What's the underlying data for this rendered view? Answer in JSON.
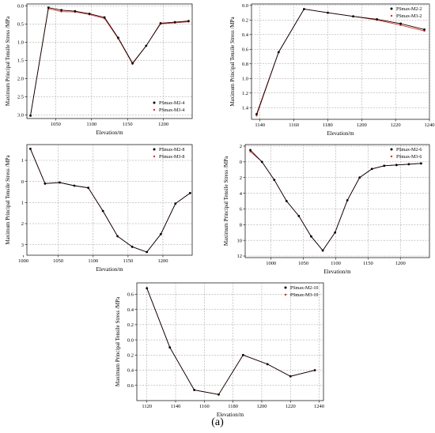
{
  "caption": "(a)",
  "colors": {
    "m2": "#000000",
    "m3": "#e8281e",
    "grid": "#9a9a9a"
  },
  "chart_data": [
    {
      "type": "line",
      "xlabel": "Elevation/m",
      "ylabel": "Maximum Principal Tensile Stress /MPa",
      "xlim": [
        1010,
        1240
      ],
      "ylim": [
        -3.1,
        0.05
      ],
      "xticks": [
        1050,
        1100,
        1150,
        1200
      ],
      "yticks": [
        0,
        -0.5,
        -1,
        -1.5,
        -2,
        -2.5,
        -3
      ],
      "ytick_labels": [
        "0.0",
        "0.5",
        "1.0",
        "1.5",
        "2.0",
        "2.5",
        "3.0"
      ],
      "legend_position": "bottom-right",
      "series": [
        {
          "name": "PSmax-M2-4",
          "x": [
            1015,
            1040,
            1058,
            1077,
            1097,
            1118,
            1137,
            1157,
            1176,
            1196,
            1216,
            1235
          ],
          "y": [
            -3.02,
            -0.05,
            -0.12,
            -0.15,
            -0.22,
            -0.32,
            -0.88,
            -1.58,
            -1.1,
            -0.48,
            -0.45,
            -0.42
          ]
        },
        {
          "name": "PSmax-M3-4",
          "x": [
            1015,
            1040,
            1058,
            1077,
            1097,
            1118,
            1137,
            1157,
            1176,
            1196,
            1216,
            1235
          ],
          "y": [
            -3.02,
            -0.08,
            -0.16,
            -0.17,
            -0.24,
            -0.35,
            -0.9,
            -1.6,
            -1.1,
            -0.5,
            -0.47,
            -0.44
          ]
        }
      ]
    },
    {
      "type": "line",
      "xlabel": "Elevation/m",
      "ylabel": "Maximum Principal Tensile Stress /MPa",
      "xlim": [
        1135,
        1240
      ],
      "ylim": [
        -1.56,
        0.02
      ],
      "xticks": [
        1140,
        1160,
        1180,
        1200,
        1220,
        1240
      ],
      "yticks": [
        0,
        -0.2,
        -0.4,
        -0.6,
        -0.8,
        -1.0,
        -1.2,
        -1.4
      ],
      "ytick_labels": [
        "0.0",
        "0.2",
        "0.4",
        "0.6",
        "0.8",
        "1.0",
        "1.2",
        "1.4"
      ],
      "legend_position": "top-right",
      "series": [
        {
          "name": "PSmax-M2-2",
          "x": [
            1138,
            1151,
            1166,
            1180,
            1195,
            1209,
            1223,
            1237
          ],
          "y": [
            -1.49,
            -0.64,
            -0.05,
            -0.1,
            -0.15,
            -0.19,
            -0.25,
            -0.33
          ]
        },
        {
          "name": "PSmax-M3-2",
          "x": [
            1138,
            1151,
            1166,
            1180,
            1195,
            1209,
            1223,
            1237
          ],
          "y": [
            -1.51,
            -0.64,
            -0.05,
            -0.1,
            -0.15,
            -0.2,
            -0.27,
            -0.35
          ]
        }
      ]
    },
    {
      "type": "line",
      "xlabel": "Elevation/m",
      "ylabel": "Maximum Principal Tensile Stress /MPa",
      "xlim": [
        1005,
        1242
      ],
      "ylim": [
        -3.5,
        1.75
      ],
      "xticks": [
        1000,
        1050,
        1100,
        1150,
        1200
      ],
      "yticks": [
        1,
        0,
        -1,
        -2,
        -3
      ],
      "ytick_labels": [
        "1",
        "0",
        "1",
        "2",
        "3"
      ],
      "legend_position": "top-right",
      "series": [
        {
          "name": "PSmax-M2-8",
          "x": [
            1010,
            1031,
            1052,
            1073,
            1093,
            1114,
            1135,
            1156,
            1177,
            1197,
            1218,
            1239
          ],
          "y": [
            1.55,
            -0.1,
            -0.05,
            -0.2,
            -0.3,
            -1.4,
            -2.6,
            -3.1,
            -3.35,
            -2.5,
            -1.05,
            -0.55
          ]
        },
        {
          "name": "PSmax-M3-8",
          "x": [
            1010,
            1031,
            1052,
            1073,
            1093,
            1114,
            1135,
            1156,
            1177,
            1197,
            1218,
            1239
          ],
          "y": [
            1.55,
            -0.1,
            -0.05,
            -0.2,
            -0.3,
            -1.4,
            -2.6,
            -3.1,
            -3.35,
            -2.5,
            -1.05,
            -0.55
          ]
        }
      ]
    },
    {
      "type": "line",
      "xlabel": "Elevation/m",
      "ylabel": "Maximum Principal Tensile Stress /MPa",
      "xlim": [
        960,
        1245
      ],
      "ylim": [
        -12.2,
        2.2
      ],
      "xticks": [
        1000,
        1050,
        1100,
        1150,
        1200
      ],
      "yticks": [
        2,
        0,
        -2,
        -4,
        -6,
        -8,
        -10,
        -12
      ],
      "ytick_labels": [
        "2",
        "0",
        "2",
        "4",
        "6",
        "8",
        "10",
        "12"
      ],
      "legend_position": "top-right",
      "series": [
        {
          "name": "PSmax-M2-6",
          "x": [
            968,
            986,
            1005,
            1024,
            1043,
            1062,
            1080,
            1099,
            1118,
            1137,
            1156,
            1175,
            1194,
            1213,
            1232
          ],
          "y": [
            1.5,
            0.0,
            -2.3,
            -5.0,
            -6.9,
            -9.5,
            -11.3,
            -9.0,
            -4.9,
            -2.0,
            -0.9,
            -0.5,
            -0.4,
            -0.3,
            -0.2
          ]
        },
        {
          "name": "PSmax-M3-6",
          "x": [
            968,
            986,
            1005,
            1024,
            1043,
            1062,
            1080,
            1099,
            1118,
            1137,
            1156,
            1175,
            1194,
            1213,
            1232
          ],
          "y": [
            1.3,
            0.0,
            -2.3,
            -5.0,
            -6.9,
            -9.5,
            -11.3,
            -9.0,
            -4.9,
            -2.0,
            -0.9,
            -0.5,
            -0.4,
            -0.3,
            -0.2
          ]
        }
      ]
    },
    {
      "type": "line",
      "xlabel": "Elevation/m",
      "ylabel": "Maximum Principal Tensile Stress /MPa",
      "xlim": [
        1113,
        1243
      ],
      "ylim": [
        -0.8,
        0.75
      ],
      "xticks": [
        1120,
        1140,
        1160,
        1180,
        1200,
        1220,
        1240
      ],
      "yticks": [
        0.6,
        0.4,
        0.2,
        0.0,
        -0.2,
        -0.4,
        -0.6
      ],
      "ytick_labels": [
        "0.6",
        "0.4",
        "0.2",
        "0.0",
        "0.2",
        "0.4",
        "0.6"
      ],
      "legend_position": "top-right",
      "series": [
        {
          "name": "PSmax-M2-10",
          "x": [
            1120,
            1136,
            1153,
            1170,
            1187,
            1204,
            1220,
            1237
          ],
          "y": [
            0.68,
            -0.1,
            -0.66,
            -0.72,
            -0.2,
            -0.32,
            -0.48,
            -0.4
          ]
        },
        {
          "name": "PSmax-M3-10",
          "x": [
            1120,
            1136,
            1153,
            1170,
            1187,
            1204,
            1220,
            1237
          ],
          "y": [
            0.68,
            -0.1,
            -0.66,
            -0.72,
            -0.2,
            -0.32,
            -0.48,
            -0.4
          ]
        }
      ]
    }
  ]
}
